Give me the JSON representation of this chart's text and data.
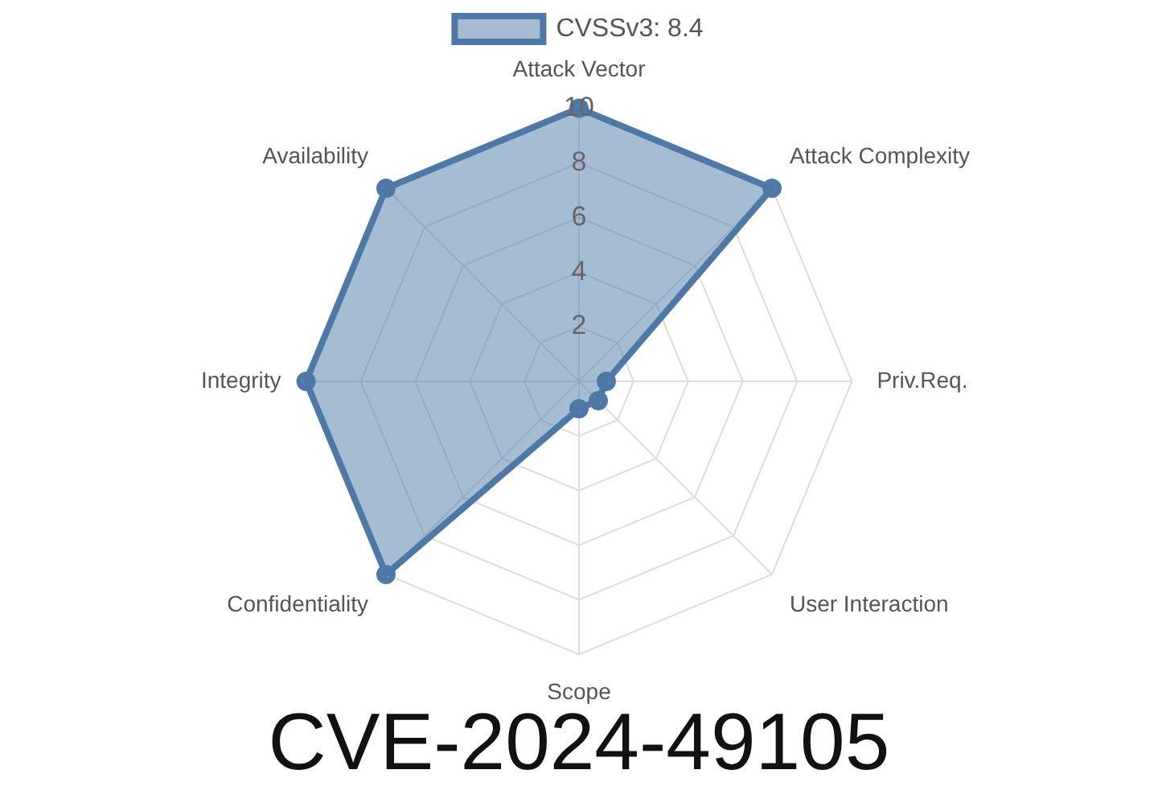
{
  "chart_data": {
    "type": "radar",
    "title": "CVE-2024-49105",
    "categories": [
      "Attack Vector",
      "Attack Complexity",
      "Priv.Req.",
      "User Interaction",
      "Scope",
      "Confidentiality",
      "Integrity",
      "Availability"
    ],
    "series": [
      {
        "name": "CVSSv3: 8.4",
        "color": "#4e79a7",
        "values": [
          10,
          10,
          1,
          1,
          1,
          10,
          10,
          10
        ]
      }
    ],
    "ylim": [
      0,
      10
    ],
    "yticks": [
      2,
      4,
      6,
      8,
      10
    ],
    "grid": true,
    "legend": "top",
    "marker": "circle"
  }
}
